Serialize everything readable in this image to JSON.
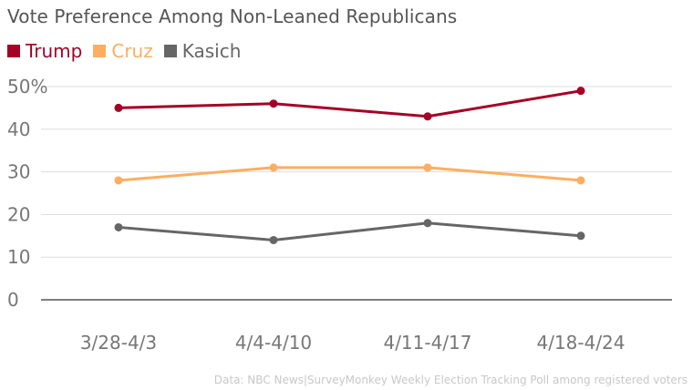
{
  "chart_data": {
    "type": "line",
    "title": "Vote Preference Among Non-Leaned Republicans",
    "categories": [
      "3/28-4/3",
      "4/4-4/10",
      "4/11-4/17",
      "4/18-4/24"
    ],
    "series": [
      {
        "name": "Trump",
        "color": "#a50026",
        "values": [
          45,
          46,
          43,
          49
        ]
      },
      {
        "name": "Cruz",
        "color": "#fdae61",
        "values": [
          28,
          31,
          31,
          28
        ]
      },
      {
        "name": "Kasich",
        "color": "#666666",
        "values": [
          17,
          14,
          18,
          15
        ]
      }
    ],
    "ylim": [
      0,
      50
    ],
    "yticks": [
      "0",
      "10",
      "20",
      "30",
      "40",
      "50%"
    ],
    "legend_position": "top-left",
    "grid": true,
    "source": "Data: NBC News|SurveyMonkey Weekly Election Tracking Poll among registered voters"
  }
}
